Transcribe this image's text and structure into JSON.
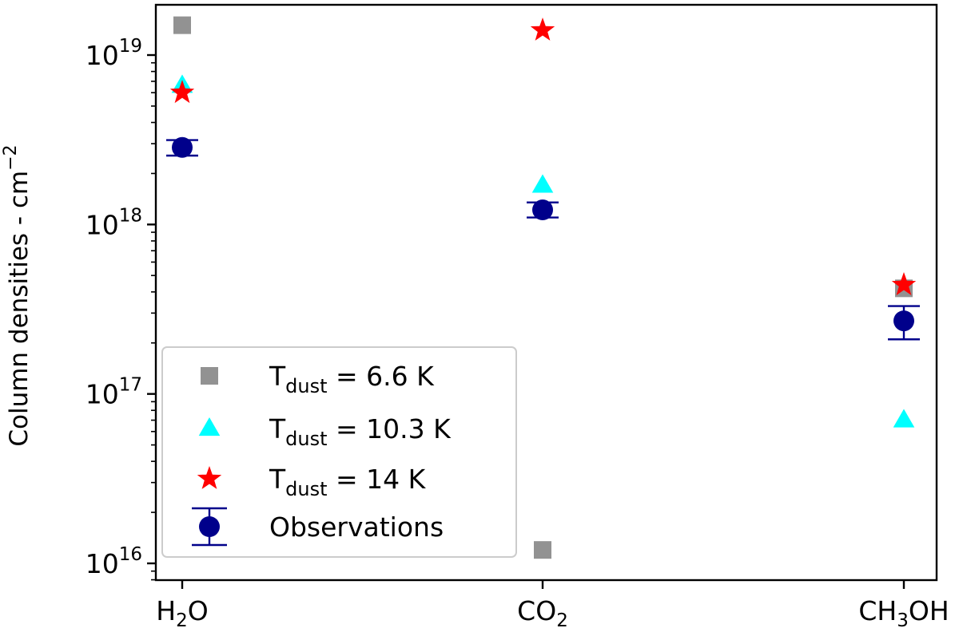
{
  "chart_data": {
    "type": "scatter",
    "yscale": "log",
    "ylim": [
      8500000000000000.0,
      2e+19
    ],
    "ylabel": "Column densities - cm",
    "ylabel_exponent": "−2",
    "categories": [
      {
        "base": "H",
        "sub": "2",
        "rest": "O"
      },
      {
        "base": "CO",
        "sub": "2",
        "rest": ""
      },
      {
        "base": "CH",
        "sub": "3",
        "rest": "OH"
      }
    ],
    "yticks": [
      {
        "mantissa": "10",
        "exp": "16",
        "value": 1e+16
      },
      {
        "mantissa": "10",
        "exp": "17",
        "value": 1e+17
      },
      {
        "mantissa": "10",
        "exp": "18",
        "value": 1e+18
      },
      {
        "mantissa": "10",
        "exp": "19",
        "value": 1e+19
      }
    ],
    "legend_position": "lower-left",
    "series": [
      {
        "legend_prefix": "T",
        "legend_sub": "dust",
        "legend_suffix": " = 6.6 K",
        "marker": "square",
        "color": "#929292",
        "values": [
          1.5e+19,
          1.2e+16,
          4.2e+17
        ]
      },
      {
        "legend_prefix": "T",
        "legend_sub": "dust",
        "legend_suffix": " = 10.3 K",
        "marker": "triangle",
        "color": "#00ffff",
        "values": [
          6.6e+18,
          1.7e+18,
          7e+16
        ]
      },
      {
        "legend_prefix": "T",
        "legend_sub": "dust",
        "legend_suffix": " = 14 K",
        "marker": "star",
        "color": "#ff0000",
        "values": [
          6e+18,
          1.4e+19,
          4.4e+17
        ]
      },
      {
        "legend_prefix": "Observations",
        "legend_sub": "",
        "legend_suffix": "",
        "marker": "circle-errorbar",
        "color": "#00008b",
        "values": [
          2.85e+18,
          1.22e+18,
          2.7e+17
        ],
        "err_low": [
          2.55e+18,
          1.1e+18,
          2.1e+17
        ],
        "err_high": [
          3.15e+18,
          1.35e+18,
          3.3e+17
        ]
      }
    ]
  }
}
